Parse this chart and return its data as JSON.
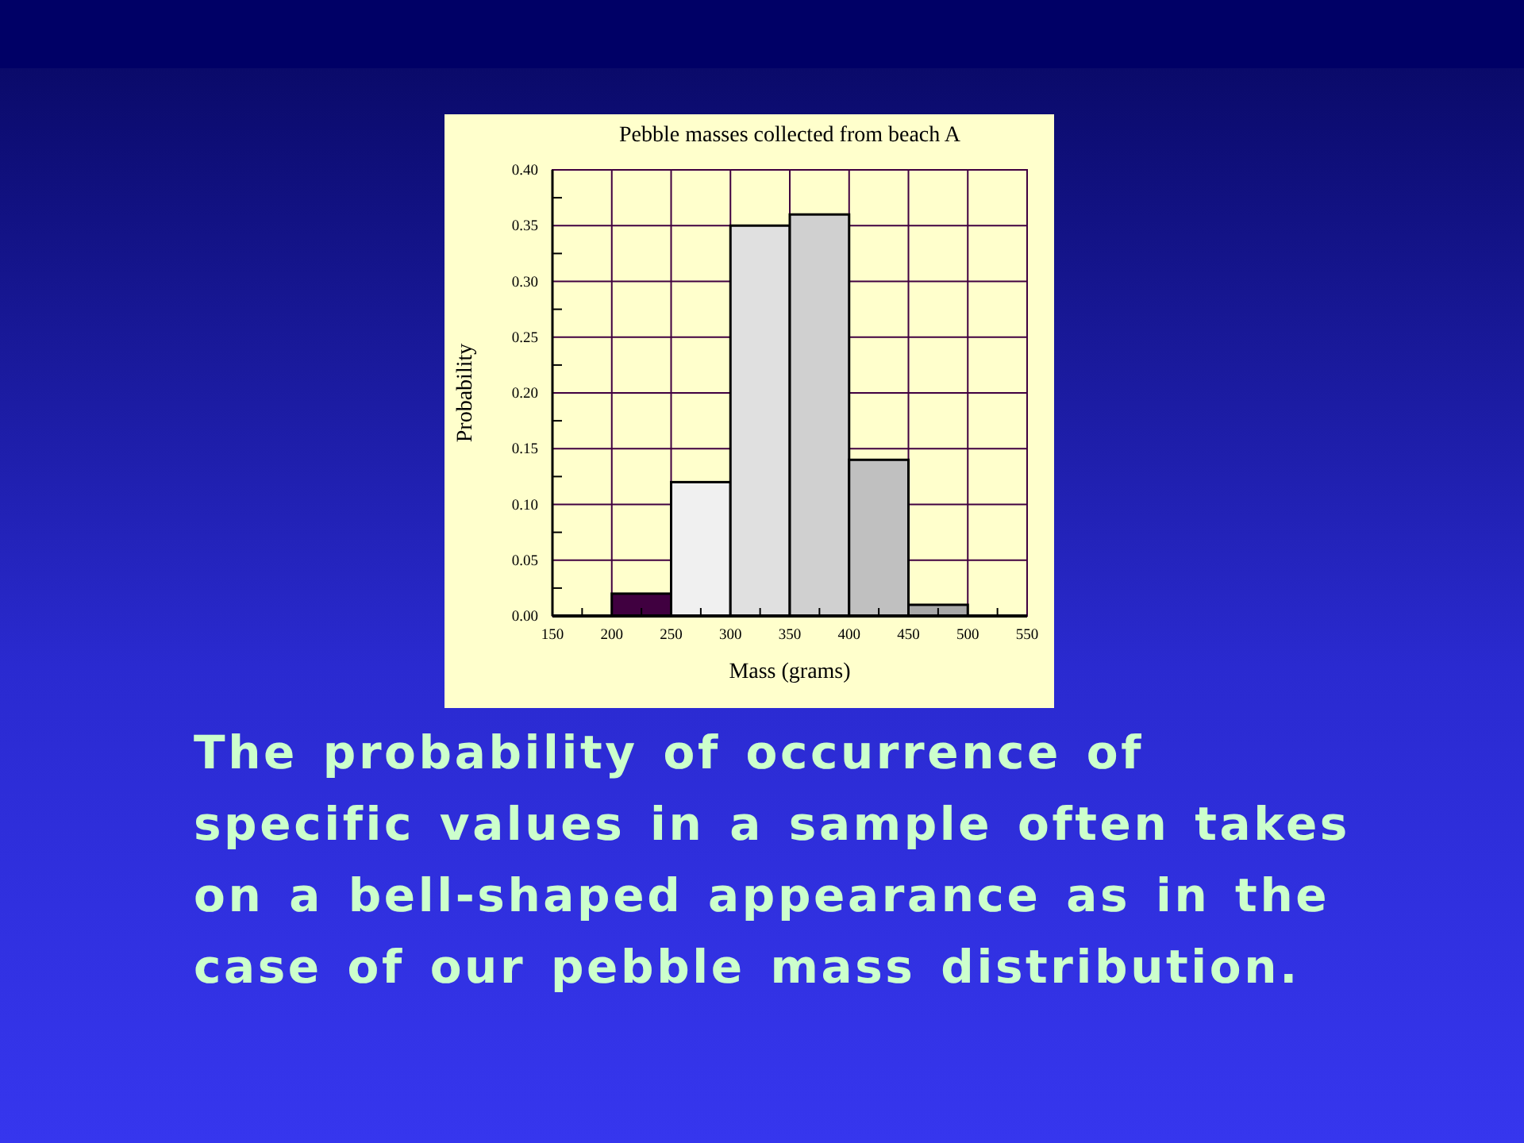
{
  "chart_data": {
    "type": "histogram",
    "title": "Pebble masses collected from beach A",
    "xlabel": "Mass (grams)",
    "ylabel": "Probability",
    "bins": [
      200,
      250,
      300,
      350,
      400,
      450,
      500
    ],
    "values": [
      0.02,
      0.12,
      0.35,
      0.36,
      0.14,
      0.01
    ],
    "colors": [
      "#400040",
      "#f0f0f0",
      "#e0e0e0",
      "#d0d0d0",
      "#c0c0c0",
      "#a8a8a8"
    ],
    "xlim": [
      150,
      550
    ],
    "xticks": [
      150,
      {
        "value": 175,
        "label": null
      },
      200,
      {
        "value": 225,
        "label": null
      },
      250,
      {
        "value": 275,
        "label": null
      },
      300,
      {
        "value": 325,
        "label": null
      },
      350,
      {
        "value": 375,
        "label": null
      },
      400,
      {
        "value": 425,
        "label": null
      },
      450,
      {
        "value": 475,
        "label": null
      },
      500,
      {
        "value": 525,
        "label": null
      },
      550
    ],
    "ylim": [
      0,
      0.4
    ],
    "yticks": [
      {
        "value": 0,
        "label": "0.00"
      },
      {
        "value": 0.025,
        "label": null
      },
      {
        "value": 0.05,
        "label": "0.05"
      },
      {
        "value": 0.075,
        "label": null
      },
      {
        "value": 0.1,
        "label": "0.10"
      },
      {
        "value": 0.125,
        "label": null
      },
      {
        "value": 0.15,
        "label": "0.15"
      },
      {
        "value": 0.175,
        "label": null
      },
      {
        "value": 0.2,
        "label": "0.20"
      },
      {
        "value": 0.225,
        "label": null
      },
      {
        "value": 0.25,
        "label": "0.25"
      },
      {
        "value": 0.275,
        "label": null
      },
      {
        "value": 0.3,
        "label": "0.30"
      },
      {
        "value": 0.325,
        "label": null
      },
      {
        "value": 0.35,
        "label": "0.35"
      },
      {
        "value": 0.375,
        "label": null
      },
      {
        "value": 0.4,
        "label": "0.40"
      }
    ],
    "grid": true,
    "annotations": [
      "The probability of occurrence of specific values in a sample often takes on a bell-shaped appearance as in the case of our pebble mass distribution."
    ]
  }
}
